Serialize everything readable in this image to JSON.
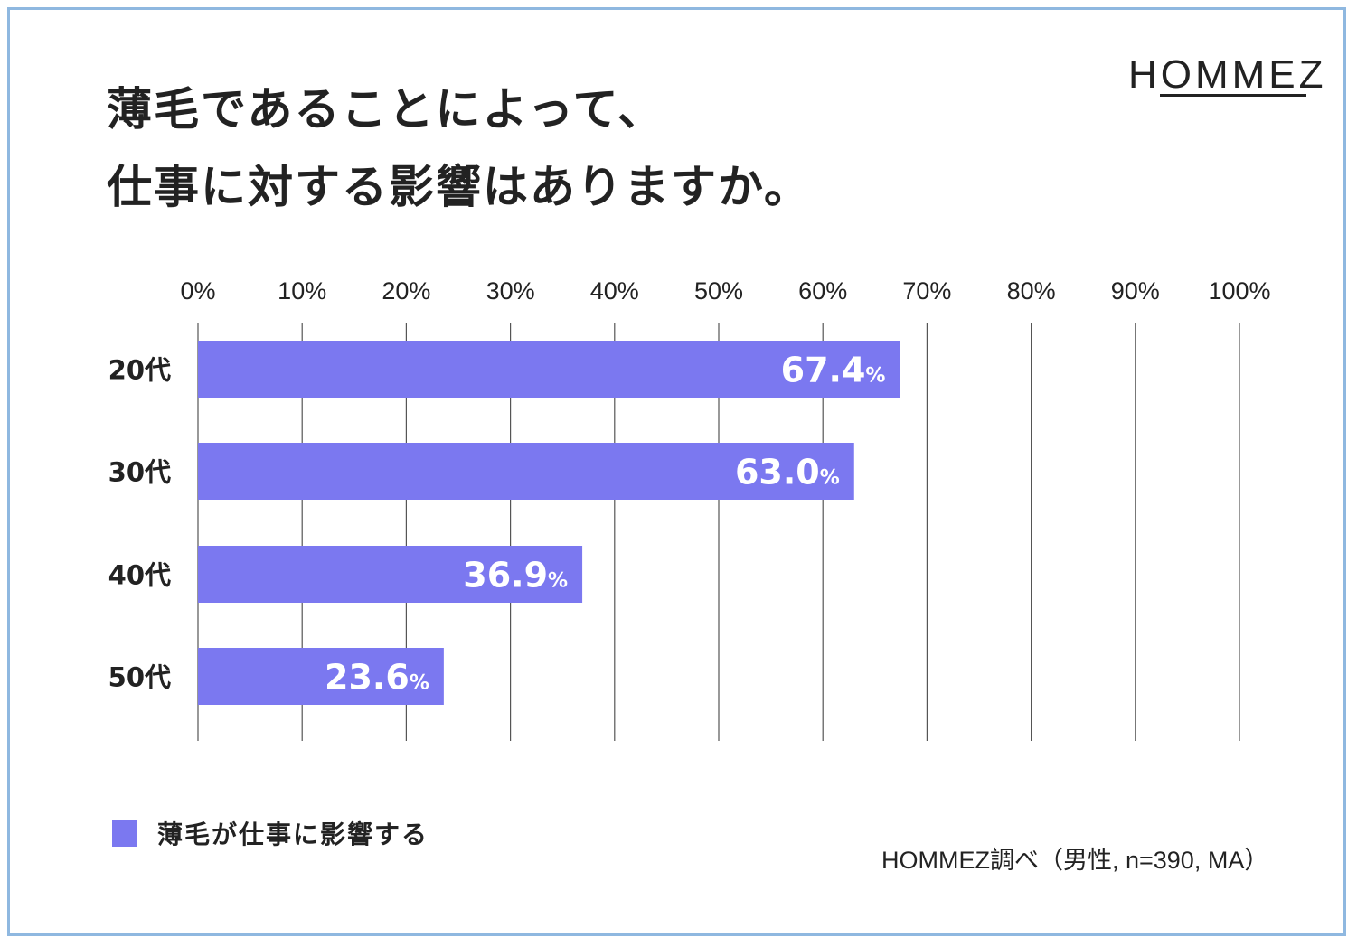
{
  "title_lines": [
    "薄毛であることによって、",
    "仕事に対する影響はありますか。"
  ],
  "logo": "HOMMEZ",
  "source_note": "HOMMEZ調べ（男性, n=390, MA）",
  "colors": {
    "bar": "#7b78f0",
    "text": "#222222",
    "grid": "#555555",
    "frame": "#8fb8e0"
  },
  "chart_data": {
    "type": "bar",
    "orientation": "horizontal",
    "categories": [
      "20代",
      "30代",
      "40代",
      "50代"
    ],
    "series": [
      {
        "name": "薄毛が仕事に影響する",
        "values": [
          67.4,
          63.0,
          36.9,
          23.6
        ]
      }
    ],
    "value_labels": [
      "67.4",
      "63.0",
      "36.9",
      "23.6"
    ],
    "value_unit": "%",
    "xlim": [
      0,
      100
    ],
    "xticks": [
      "0%",
      "10%",
      "20%",
      "30%",
      "40%",
      "50%",
      "60%",
      "70%",
      "80%",
      "90%",
      "100%"
    ],
    "tick_axis_position": "top",
    "grid": true,
    "legend_position": "bottom-left"
  }
}
